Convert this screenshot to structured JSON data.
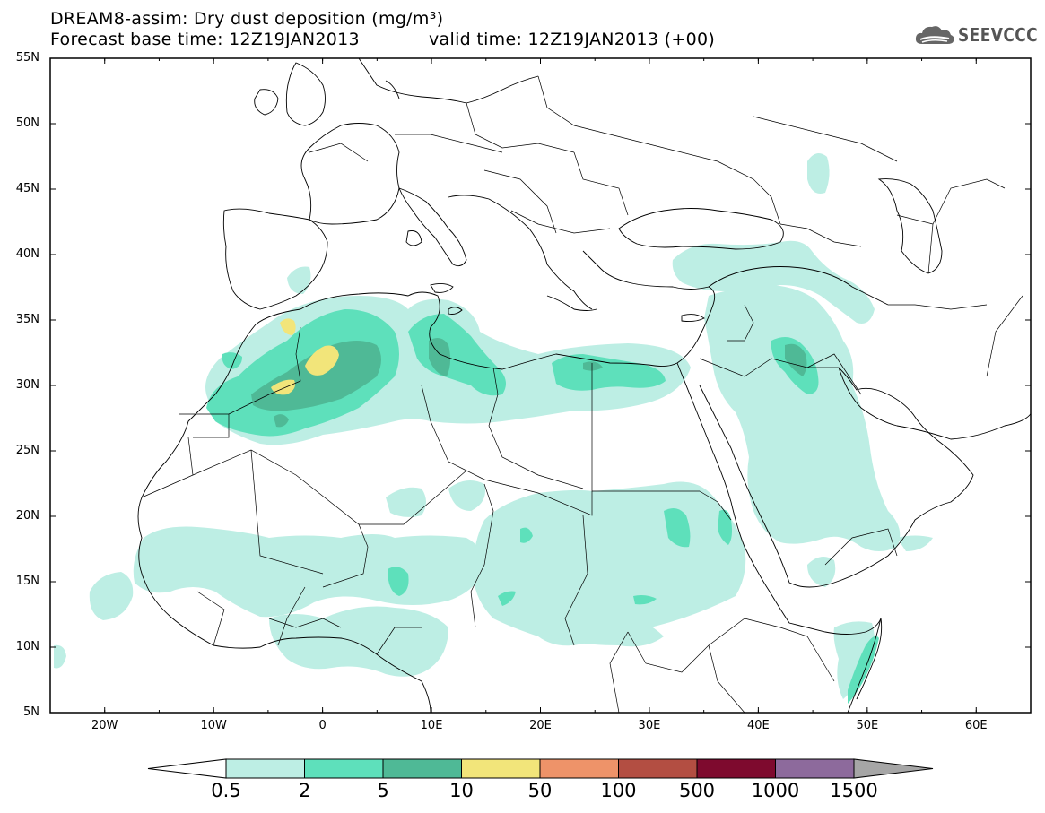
{
  "header": {
    "title_line1": "DREAM8-assim: Dry dust deposition (mg/m³)",
    "title_line2": "Forecast base time: 12Z19JAN2013",
    "valid_time": "valid time: 12Z19JAN2013 (+00)",
    "logo_text": "SEEVCCC"
  },
  "map": {
    "lat_labels": [
      "55N",
      "50N",
      "45N",
      "40N",
      "35N",
      "30N",
      "25N",
      "20N",
      "15N",
      "10N",
      "5N"
    ],
    "lon_labels": [
      "20W",
      "10W",
      "0",
      "10E",
      "20E",
      "30E",
      "40E",
      "50E",
      "60E"
    ],
    "extent": {
      "lon_min": -25,
      "lon_max": 65,
      "lat_min": 5,
      "lat_max": 55
    },
    "colors": {
      "land_outline": "#000000",
      "frame": "#000000"
    }
  },
  "colorbar": {
    "labels": [
      "0.5",
      "2",
      "5",
      "10",
      "50",
      "100",
      "500",
      "1000",
      "1500"
    ],
    "colors": [
      "#bdeee4",
      "#5ee0bb",
      "#4fb996",
      "#f2e57a",
      "#ee9369",
      "#b34e42",
      "#7e0a2e",
      "#8d6a9c"
    ],
    "under_color": "#ffffff",
    "over_color": "#a6a6a6"
  }
}
